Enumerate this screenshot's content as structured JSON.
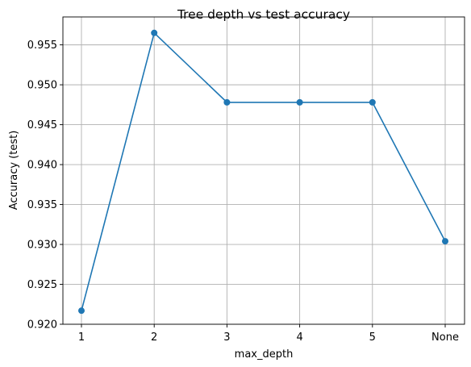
{
  "chart_data": {
    "type": "line",
    "title": "Tree depth vs test accuracy",
    "xlabel": "max_depth",
    "ylabel": "Accuracy (test)",
    "categories": [
      "1",
      "2",
      "3",
      "4",
      "5",
      "None"
    ],
    "series": [
      {
        "values": [
          0.9217,
          0.9565,
          0.9478,
          0.9478,
          0.9478,
          0.9304
        ]
      }
    ],
    "ylim": [
      0.92,
      0.9585
    ],
    "yticks": [
      "0.920",
      "0.925",
      "0.930",
      "0.935",
      "0.940",
      "0.945",
      "0.950",
      "0.955"
    ],
    "grid": true,
    "marker": "circle",
    "color": "#1f77b4"
  }
}
